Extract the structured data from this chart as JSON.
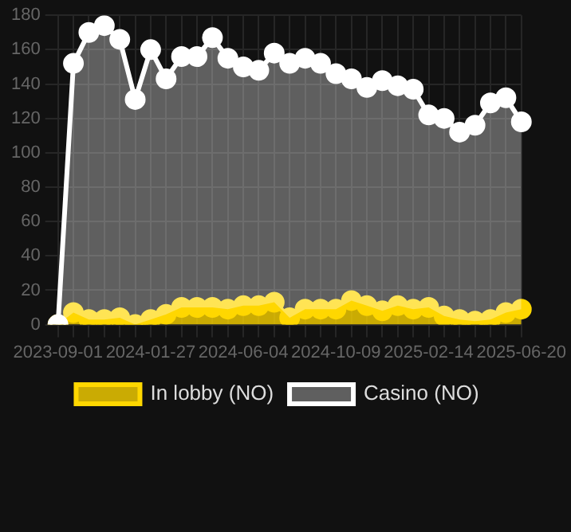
{
  "chart_data": {
    "type": "area",
    "categories": [
      "2023-09-01",
      null,
      null,
      null,
      null,
      null,
      "2024-01-27",
      null,
      null,
      null,
      null,
      null,
      "2024-06-04",
      null,
      null,
      null,
      null,
      null,
      "2024-10-09",
      null,
      null,
      null,
      null,
      null,
      "2025-02-14",
      null,
      null,
      null,
      null,
      null,
      "2025-06-20"
    ],
    "series": [
      {
        "name": "In lobby (NO)",
        "color": "#ffd700",
        "values": [
          0,
          7,
          3,
          3,
          4,
          0,
          3,
          6,
          10,
          10,
          10,
          9,
          11,
          11,
          13,
          4,
          9,
          9,
          9,
          14,
          11,
          8,
          11,
          9,
          10,
          5,
          3,
          2,
          3,
          7,
          9
        ]
      },
      {
        "name": "Casino (NO)",
        "color": "#ffffff",
        "values": [
          0,
          152,
          170,
          174,
          166,
          131,
          160,
          143,
          156,
          156,
          167,
          155,
          150,
          148,
          158,
          152,
          155,
          152,
          146,
          143,
          138,
          142,
          139,
          137,
          122,
          120,
          112,
          116,
          129,
          132,
          118
        ]
      }
    ],
    "ylim": [
      0,
      180
    ],
    "yticks": [
      0,
      20,
      40,
      60,
      80,
      100,
      120,
      140,
      160,
      180
    ],
    "grid": true,
    "legend": "bottom",
    "marker": "circle"
  }
}
